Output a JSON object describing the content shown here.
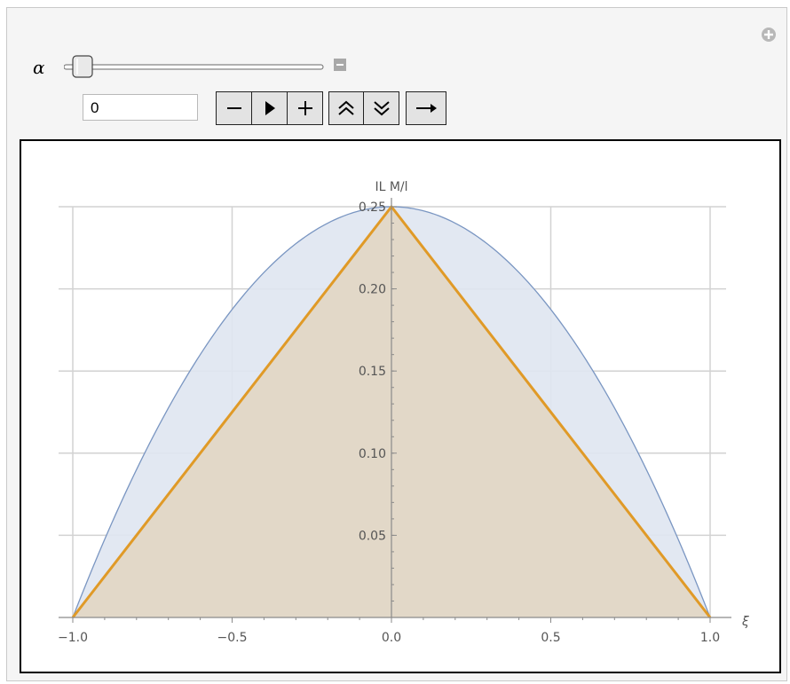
{
  "controls": {
    "parameter_label": "α",
    "slider_value": 0,
    "value_field": "0",
    "buttons": [
      "decrement",
      "play",
      "increment",
      "faster",
      "slower",
      "direction"
    ]
  },
  "icons": {
    "add": "plus-circle-icon",
    "hide": "minus-square-icon"
  },
  "colors": {
    "curve": "#7a96c2",
    "curve_fill": "#dfe6f1",
    "triangle": "#e09a27",
    "triangle_fill": "#e2d8c8"
  },
  "chart_data": {
    "type": "area",
    "title": "",
    "xlabel": "ξ",
    "ylabel": "IL M/l",
    "xlim": [
      -1.0,
      1.0
    ],
    "ylim": [
      0,
      0.25
    ],
    "x_ticks": [
      "-1.0",
      "-0.5",
      "0.0",
      "0.5",
      "1.0"
    ],
    "y_ticks": [
      "0.05",
      "0.10",
      "0.15",
      "0.20",
      "0.25"
    ],
    "grid": true,
    "series": [
      {
        "x": [
          -1.0,
          -0.8,
          -0.6,
          -0.4,
          -0.2,
          0.0,
          0.2,
          0.4,
          0.6,
          0.8,
          1.0
        ],
        "y": [
          0.0,
          0.09,
          0.16,
          0.21,
          0.24,
          0.25,
          0.24,
          0.21,
          0.16,
          0.09,
          0.0
        ]
      },
      {
        "x": [
          -1.0,
          0.0,
          1.0
        ],
        "y": [
          0.0,
          0.25,
          0.0
        ]
      }
    ]
  }
}
